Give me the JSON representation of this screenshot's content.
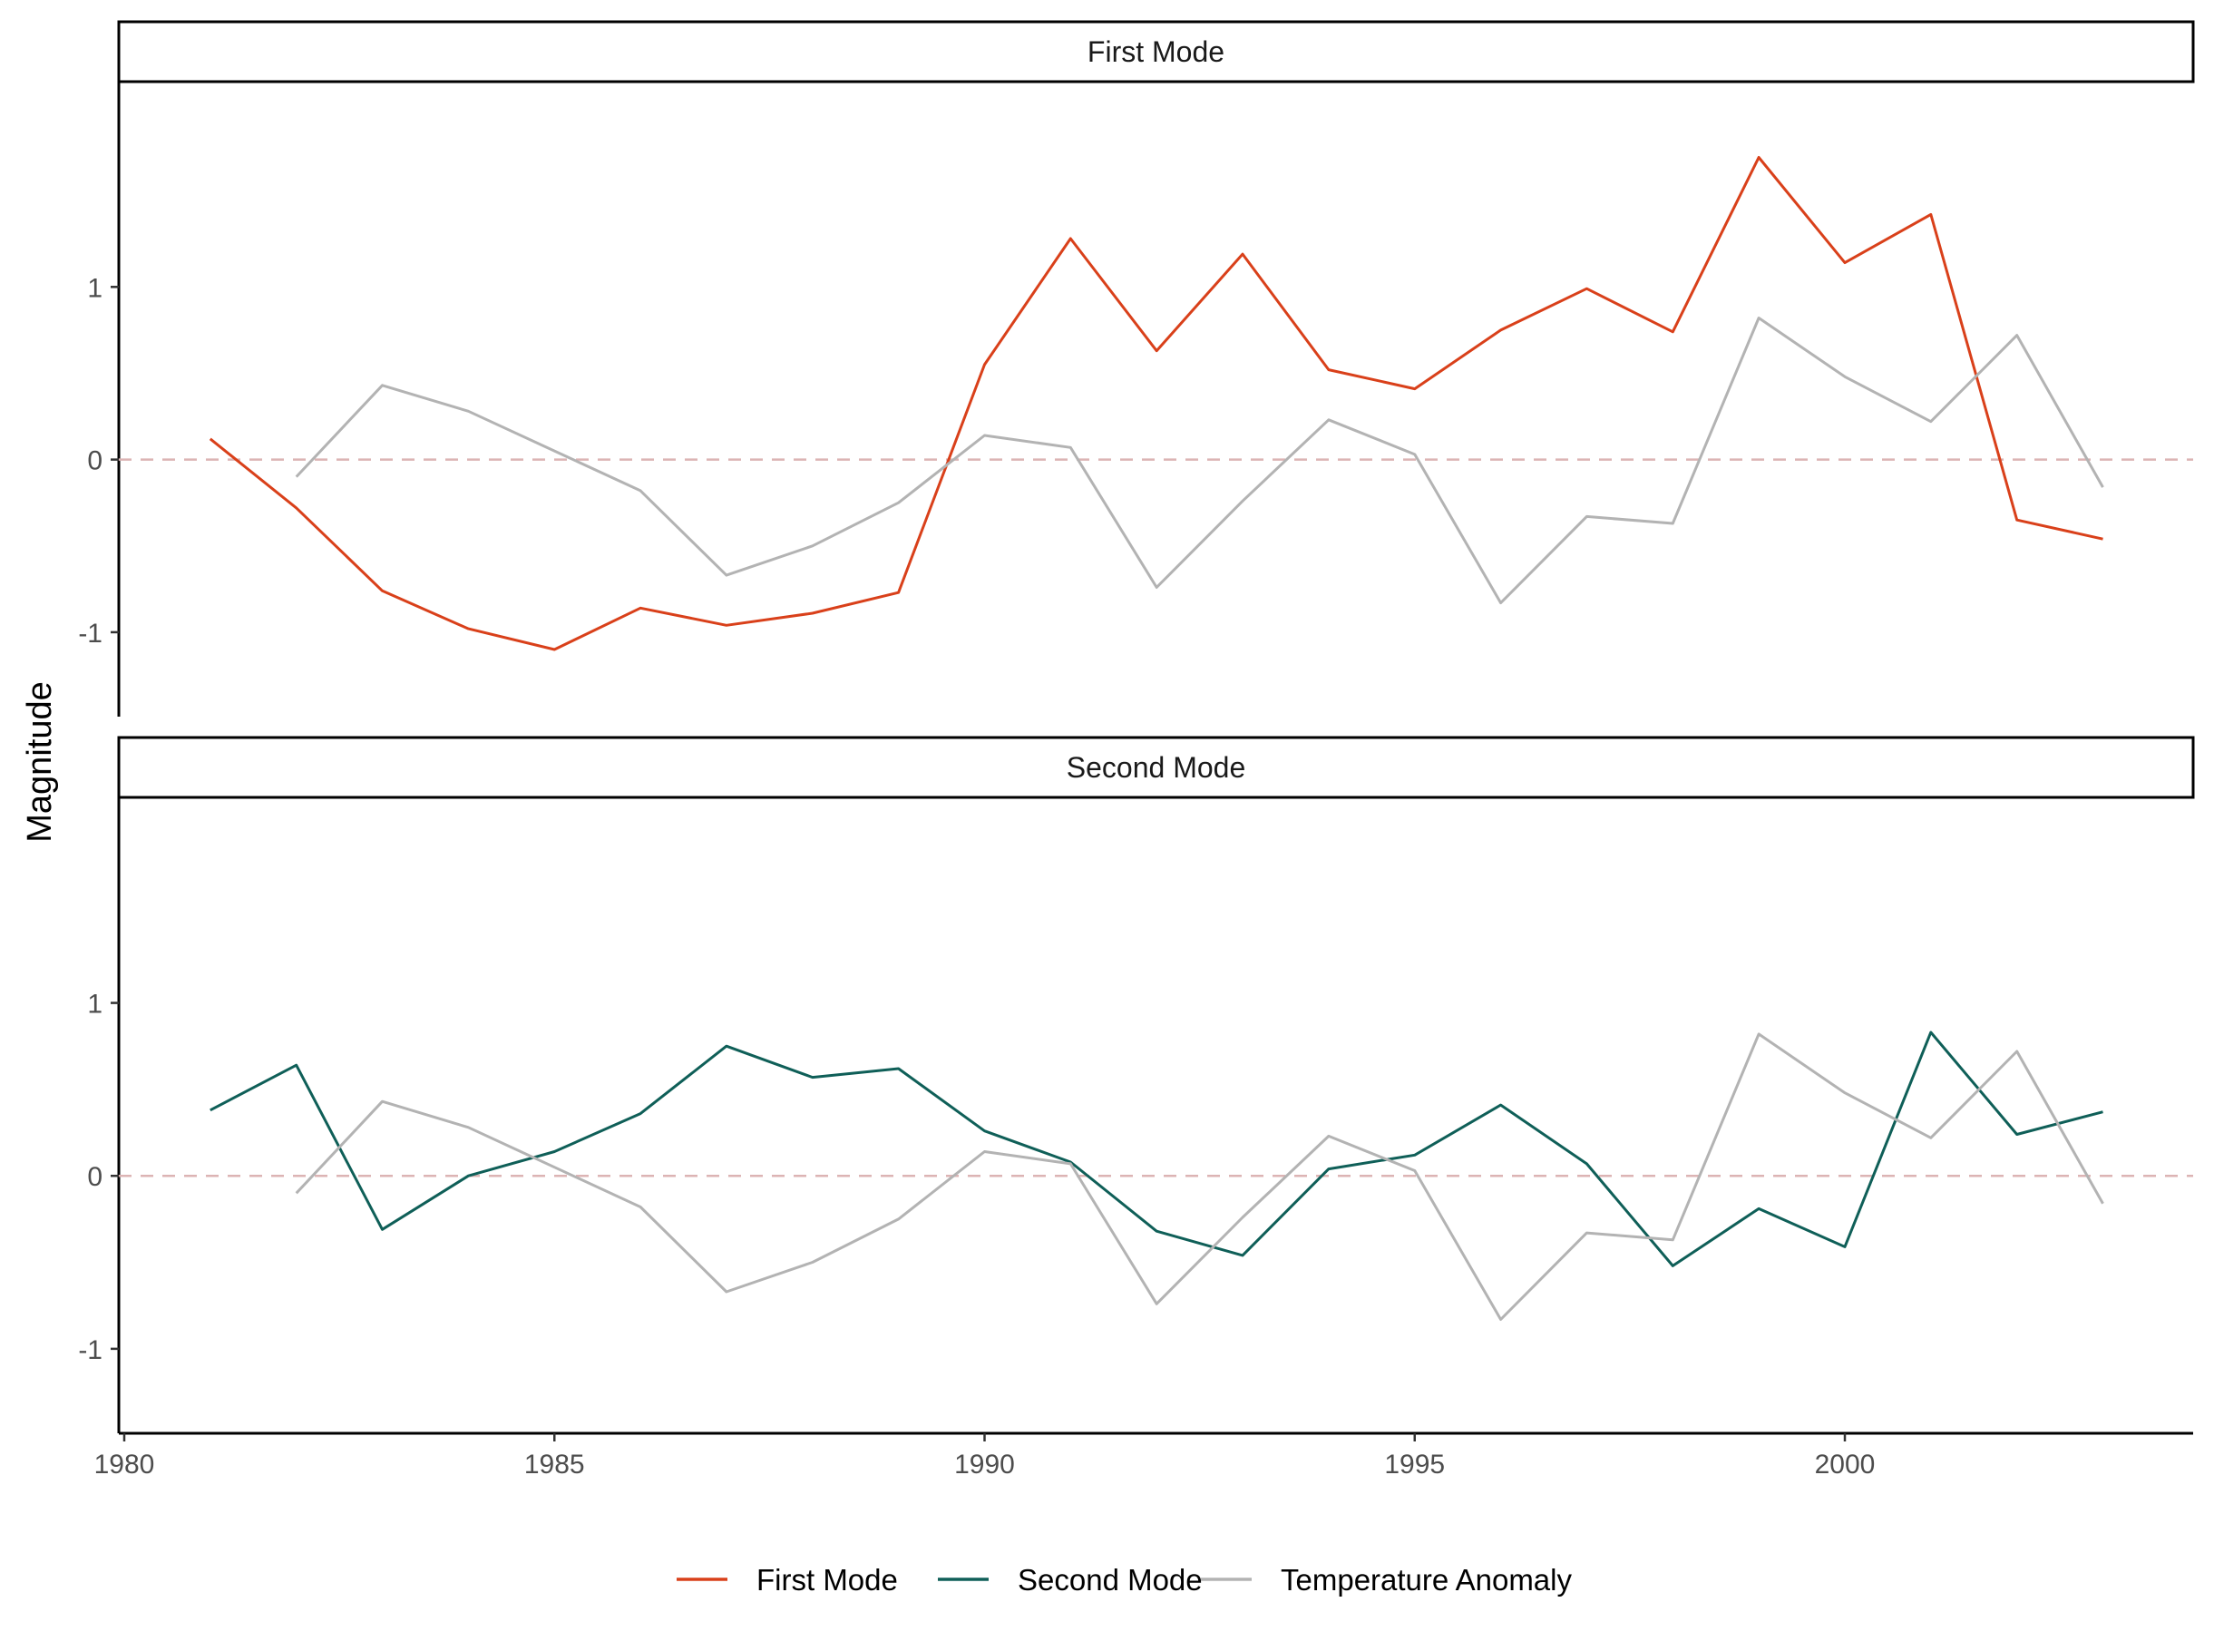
{
  "chart_data": {
    "type": "line",
    "ylabel": "Magnitude",
    "xlabel": "",
    "xlim": [
      1980,
      2004
    ],
    "ylim": [
      -1.2,
      1.9
    ],
    "x_ticks": [
      1980,
      1985,
      1990,
      1995,
      2000
    ],
    "y_ticks": [
      -1,
      0,
      1
    ],
    "reference_line": {
      "y": 0,
      "style": "dashed",
      "color": "#dcb4b4"
    },
    "grid": false,
    "legend_position": "bottom",
    "colors": {
      "First Mode": "#d9401a",
      "Second Mode": "#0f5f58",
      "Temperature Anomaly": "#b3b3b3"
    },
    "legend": [
      "First Mode",
      "Second Mode",
      "Temperature Anomaly"
    ],
    "panels": [
      {
        "title": "First Mode",
        "series": [
          {
            "name": "First Mode",
            "x": [
              1981,
              1982,
              1983,
              1984,
              1985,
              1986,
              1987,
              1988,
              1989,
              1990,
              1991,
              1992,
              1993,
              1994,
              1995,
              1996,
              1997,
              1998,
              1999,
              2000,
              2001,
              2002,
              2003
            ],
            "values": [
              0.12,
              -0.28,
              -0.76,
              -0.98,
              -1.1,
              -0.86,
              -0.96,
              -0.89,
              -0.77,
              0.55,
              1.28,
              0.63,
              1.19,
              0.52,
              0.41,
              0.75,
              0.99,
              0.74,
              1.75,
              1.14,
              1.42,
              -0.35,
              -0.46
            ]
          },
          {
            "name": "Temperature Anomaly",
            "x": [
              1982,
              1983,
              1984,
              1985,
              1986,
              1987,
              1988,
              1989,
              1990,
              1991,
              1992,
              1993,
              1994,
              1995,
              1996,
              1997,
              1998,
              1999,
              2000,
              2001,
              2002,
              2003
            ],
            "values": [
              -0.1,
              0.43,
              0.28,
              0.05,
              -0.18,
              -0.67,
              -0.5,
              -0.25,
              0.14,
              0.07,
              -0.74,
              -0.24,
              0.23,
              0.03,
              -0.83,
              -0.33,
              -0.37,
              0.82,
              0.48,
              0.22,
              0.72,
              -0.16
            ]
          }
        ]
      },
      {
        "title": "Second Mode",
        "series": [
          {
            "name": "Second Mode",
            "x": [
              1981,
              1982,
              1983,
              1984,
              1985,
              1986,
              1987,
              1988,
              1989,
              1990,
              1991,
              1992,
              1993,
              1994,
              1995,
              1996,
              1997,
              1998,
              1999,
              2000,
              2001,
              2002,
              2003
            ],
            "values": [
              0.38,
              0.64,
              -0.31,
              0.0,
              0.14,
              0.36,
              0.75,
              0.57,
              0.62,
              0.26,
              0.08,
              -0.32,
              -0.46,
              0.04,
              0.12,
              0.41,
              0.07,
              -0.52,
              -0.19,
              -0.41,
              0.83,
              0.24,
              0.37
            ]
          },
          {
            "name": "Temperature Anomaly",
            "x": [
              1982,
              1983,
              1984,
              1985,
              1986,
              1987,
              1988,
              1989,
              1990,
              1991,
              1992,
              1993,
              1994,
              1995,
              1996,
              1997,
              1998,
              1999,
              2000,
              2001,
              2002,
              2003
            ],
            "values": [
              -0.1,
              0.43,
              0.28,
              0.05,
              -0.18,
              -0.67,
              -0.5,
              -0.25,
              0.14,
              0.07,
              -0.74,
              -0.24,
              0.23,
              0.03,
              -0.83,
              -0.33,
              -0.37,
              0.82,
              0.48,
              0.22,
              0.72,
              -0.16
            ]
          }
        ]
      }
    ]
  }
}
